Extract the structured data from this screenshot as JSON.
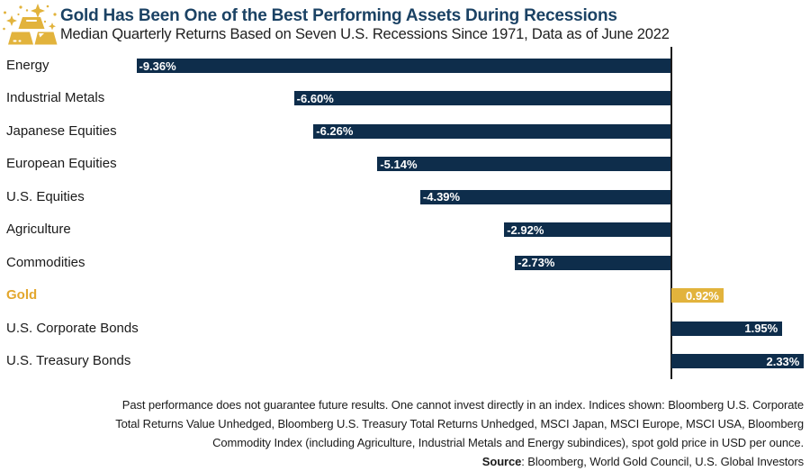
{
  "chart_data": {
    "type": "bar",
    "orientation": "horizontal",
    "title": "Gold Has Been One of the Best Performing Assets During Recessions",
    "subtitle": "Median Quarterly Returns Based on Seven U.S. Recessions Since 1971, Data as of June 2022",
    "categories": [
      "Energy",
      "Industrial Metals",
      "Japanese Equities",
      "European Equities",
      "U.S. Equities",
      "Agriculture",
      "Commodities",
      "Gold",
      "U.S. Corporate Bonds",
      "U.S. Treasury Bonds"
    ],
    "values": [
      -9.36,
      -6.6,
      -6.26,
      -5.14,
      -4.39,
      -2.92,
      -2.73,
      0.92,
      1.95,
      2.33
    ],
    "value_labels": [
      "-9.36%",
      "-6.60%",
      "-6.26%",
      "-5.14%",
      "-4.39%",
      "-2.92%",
      "-2.73%",
      "0.92%",
      "1.95%",
      "2.33%"
    ],
    "highlight_category": "Gold",
    "xlabel": "",
    "ylabel": "",
    "xlim": [
      -9.36,
      2.43
    ],
    "grid": false,
    "legend": false
  },
  "colors": {
    "bar_navy": "#0E2D4B",
    "bar_gold": "#E2B33C",
    "gold_label_text": "#E3A72E",
    "title_navy": "#1B4264",
    "text_ink": "#1A1A1A"
  },
  "icon": {
    "name": "gold-bars-icon"
  },
  "footer": {
    "lines": [
      "Past performance does not guarantee future results. One cannot invest directly in an index. Indices shown: Bloomberg U.S. Corporate",
      "Total Returns Value Unhedged, Bloomberg U.S. Treasury Total Returns Unhedged, MSCI Japan, MSCI Europe, MSCI USA, Bloomberg",
      "Commodity Index (including Agriculture, Industrial Metals and Energy subindices), spot gold price in USD per ounce."
    ],
    "source_label": "Source",
    "source_rest": ": Bloomberg, World Gold Council, U.S. Global Investors"
  }
}
